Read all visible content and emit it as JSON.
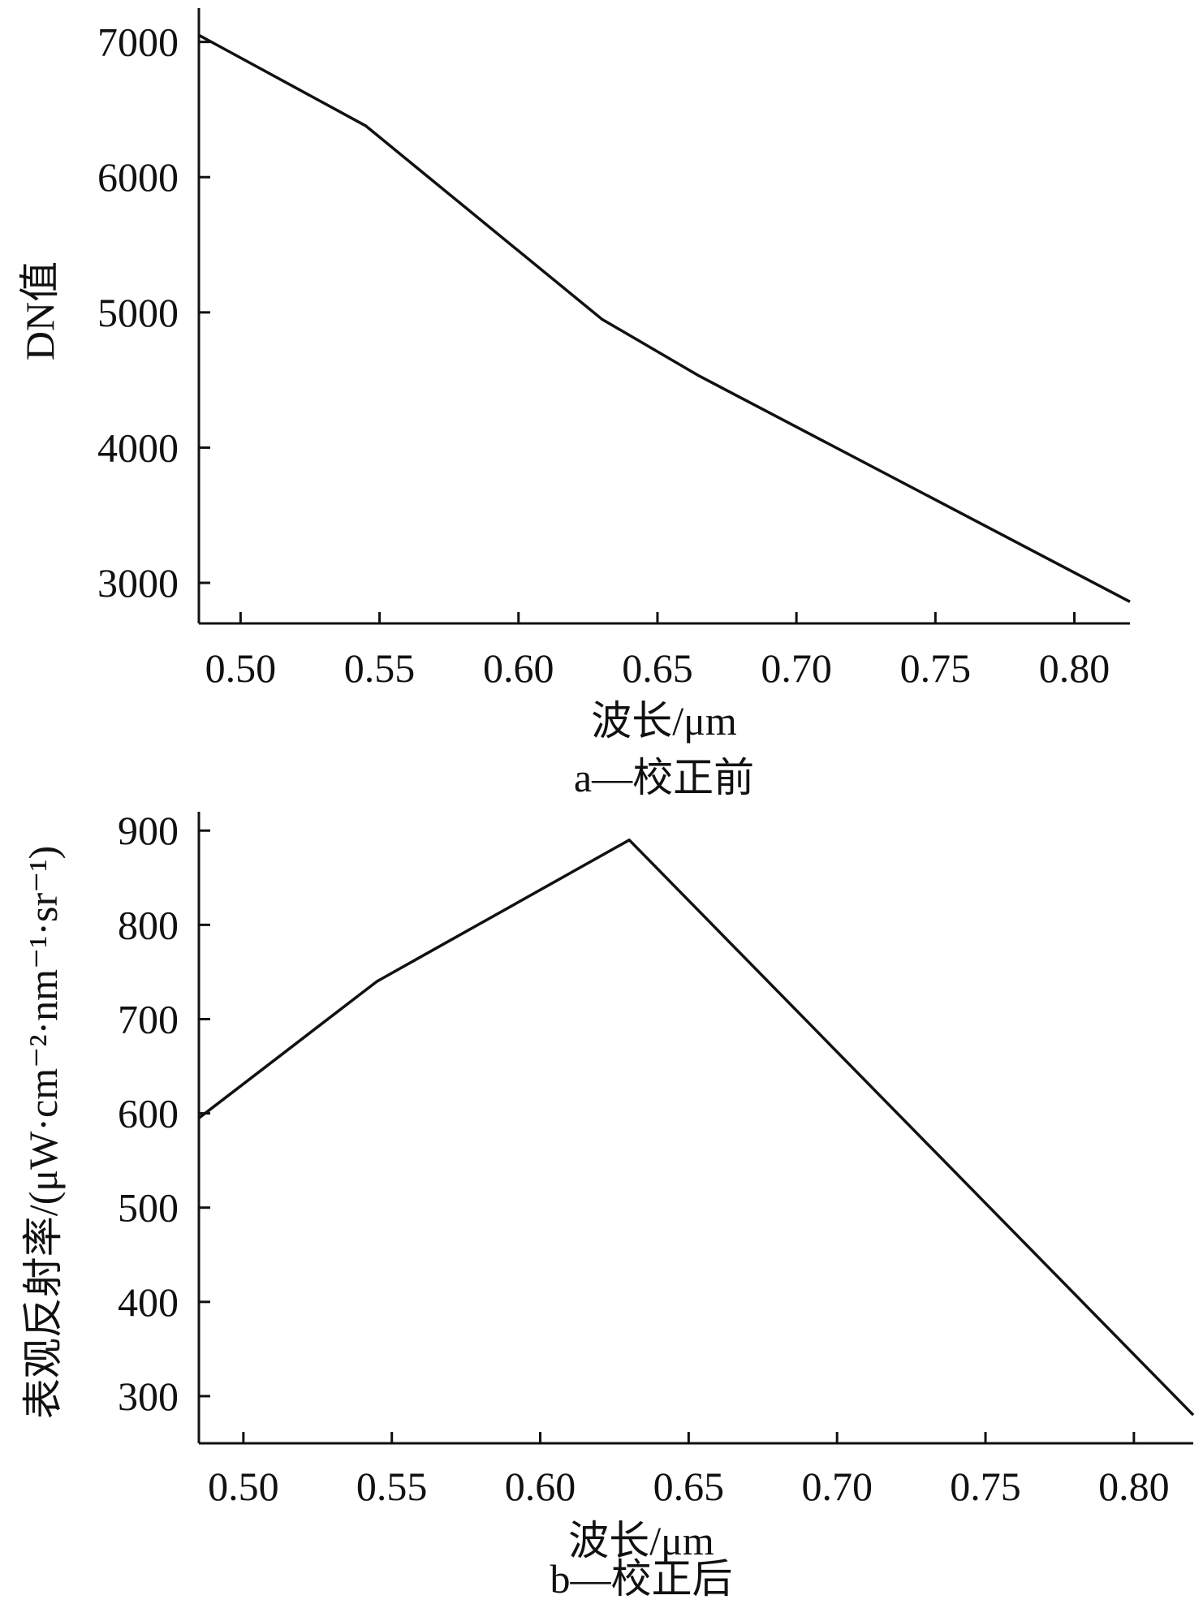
{
  "chart_data": [
    {
      "type": "line",
      "xlabel": "波长/μm",
      "ylabel": "DN值",
      "caption": "a—校正前",
      "xlim": [
        0.485,
        0.82
      ],
      "ylim": [
        2700,
        7250
      ],
      "x_ticks": [
        "0.50",
        "0.55",
        "0.60",
        "0.65",
        "0.70",
        "0.75",
        "0.80"
      ],
      "y_ticks": [
        "3000",
        "4000",
        "5000",
        "6000",
        "7000"
      ],
      "x": [
        0.485,
        0.545,
        0.63,
        0.665,
        0.82
      ],
      "y": [
        7050,
        6380,
        4950,
        4530,
        2860
      ]
    },
    {
      "type": "line",
      "xlabel": "波长/μm",
      "ylabel": "表观反射率/(μW·cm⁻²·nm⁻¹·sr⁻¹)",
      "caption": "b—校正后",
      "xlim": [
        0.485,
        0.82
      ],
      "ylim": [
        250,
        920
      ],
      "x_ticks": [
        "0.50",
        "0.55",
        "0.60",
        "0.65",
        "0.70",
        "0.75",
        "0.80"
      ],
      "y_ticks": [
        "300",
        "400",
        "500",
        "600",
        "700",
        "800",
        "900"
      ],
      "x": [
        0.485,
        0.545,
        0.63,
        0.82
      ],
      "y": [
        595,
        740,
        890,
        280
      ]
    }
  ]
}
